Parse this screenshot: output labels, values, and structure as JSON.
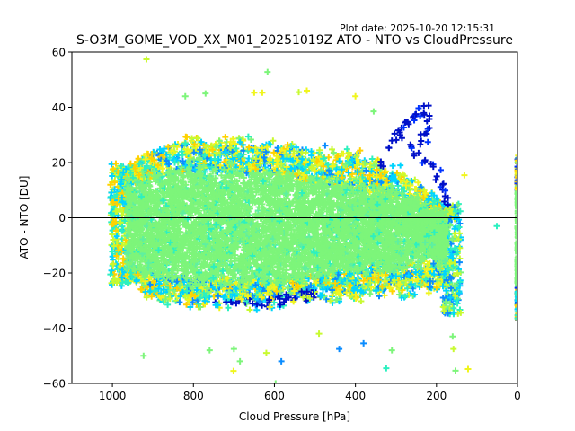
{
  "chart_data": {
    "type": "scatter",
    "title": "S-O3M_GOME_VOD_XX_M01_20251019Z ATO - NTO vs CloudPressure",
    "plot_date": "Plot date: 2025-10-20 12:15:31",
    "xlabel": "Cloud Pressure [hPa]",
    "ylabel": "ATO - NTO [DU]",
    "xlim": [
      1100,
      0
    ],
    "ylim": [
      -60,
      60
    ],
    "x_inverted": true,
    "grid": false,
    "legend": "none",
    "marker": "+",
    "x_ticks": [
      1000,
      800,
      600,
      400,
      200,
      0
    ],
    "x_tick_labels": [
      "1000",
      "800",
      "600",
      "400",
      "200",
      "0"
    ],
    "y_ticks": [
      60,
      40,
      20,
      0,
      -20,
      -40,
      -60
    ],
    "y_tick_labels": [
      "60",
      "40",
      "20",
      "0",
      "−20",
      "−40",
      "−60"
    ],
    "reference_line": {
      "y": 0,
      "color": "#000000"
    },
    "color_palette": {
      "core": "#7df57a",
      "teal": "#2cf0c0",
      "cyan": "#00d4ff",
      "azure": "#0a8cff",
      "blue": "#0033ff",
      "navy": "#0010c8",
      "yellow": "#f0f51e",
      "lime": "#c8fa30",
      "gold": "#ffd200"
    },
    "main_cloud": {
      "pressure_range": [
        980,
        160
      ],
      "upper_envelope": [
        [
          980,
          18
        ],
        [
          900,
          25
        ],
        [
          800,
          30
        ],
        [
          700,
          30
        ],
        [
          600,
          27
        ],
        [
          500,
          26
        ],
        [
          400,
          24
        ],
        [
          300,
          20
        ],
        [
          250,
          15
        ],
        [
          200,
          8
        ],
        [
          170,
          2
        ]
      ],
      "lower_envelope": [
        [
          980,
          -22
        ],
        [
          900,
          -30
        ],
        [
          800,
          -32
        ],
        [
          700,
          -33
        ],
        [
          600,
          -32
        ],
        [
          500,
          -30
        ],
        [
          400,
          -30
        ],
        [
          300,
          -29
        ],
        [
          200,
          -28
        ],
        [
          160,
          -25
        ]
      ],
      "dense_core_upper": [
        [
          960,
          12
        ],
        [
          800,
          17
        ],
        [
          600,
          15
        ],
        [
          400,
          10
        ],
        [
          250,
          5
        ],
        [
          180,
          0
        ]
      ],
      "dense_core_lower": [
        [
          960,
          -18
        ],
        [
          800,
          -22
        ],
        [
          600,
          -22
        ],
        [
          400,
          -18
        ],
        [
          250,
          -16
        ],
        [
          180,
          -14
        ]
      ]
    },
    "zero_pressure_strip": {
      "pressure": 0,
      "v_range": [
        -37,
        23
      ]
    },
    "high_ozone_branch": {
      "points": [
        [
          330,
          20
        ],
        [
          310,
          25
        ],
        [
          300,
          28
        ],
        [
          290,
          30
        ],
        [
          280,
          33
        ],
        [
          270,
          35
        ],
        [
          260,
          36
        ],
        [
          250,
          37
        ],
        [
          240,
          38
        ],
        [
          230,
          39
        ],
        [
          220,
          36
        ],
        [
          215,
          32
        ],
        [
          225,
          30
        ],
        [
          240,
          28
        ],
        [
          260,
          26
        ],
        [
          250,
          22
        ],
        [
          230,
          21
        ],
        [
          210,
          18
        ],
        [
          200,
          15
        ],
        [
          190,
          12
        ],
        [
          180,
          9
        ],
        [
          175,
          6
        ]
      ]
    },
    "outliers": [
      {
        "x": 916,
        "y": 57.4,
        "c": "lime"
      },
      {
        "x": 617,
        "y": 52.8,
        "c": "core"
      },
      {
        "x": 520,
        "y": 46,
        "c": "yellow"
      },
      {
        "x": 540,
        "y": 45.5,
        "c": "lime"
      },
      {
        "x": 650,
        "y": 45.3,
        "c": "yellow"
      },
      {
        "x": 630,
        "y": 45.3,
        "c": "yellow"
      },
      {
        "x": 400,
        "y": 44,
        "c": "yellow"
      },
      {
        "x": 770,
        "y": 45,
        "c": "core"
      },
      {
        "x": 820,
        "y": 44,
        "c": "core"
      },
      {
        "x": 355,
        "y": 38.5,
        "c": "core"
      },
      {
        "x": 131,
        "y": 15.4,
        "c": "yellow"
      },
      {
        "x": 51,
        "y": -3,
        "c": "teal"
      },
      {
        "x": 923,
        "y": -50,
        "c": "core"
      },
      {
        "x": 701,
        "y": -55.5,
        "c": "yellow"
      },
      {
        "x": 597,
        "y": -60,
        "c": "core"
      },
      {
        "x": 122,
        "y": -54.8,
        "c": "yellow"
      },
      {
        "x": 153,
        "y": -55.4,
        "c": "core"
      },
      {
        "x": 324,
        "y": -54.5,
        "c": "teal"
      },
      {
        "x": 440,
        "y": -47.5,
        "c": "azure"
      },
      {
        "x": 380,
        "y": -45.5,
        "c": "azure"
      },
      {
        "x": 158,
        "y": -47.5,
        "c": "lime"
      },
      {
        "x": 160,
        "y": -43,
        "c": "core"
      },
      {
        "x": 700,
        "y": -47.5,
        "c": "core"
      },
      {
        "x": 760,
        "y": -48,
        "c": "core"
      },
      {
        "x": 685,
        "y": -52,
        "c": "core"
      },
      {
        "x": 583,
        "y": -52,
        "c": "azure"
      },
      {
        "x": 620,
        "y": -49,
        "c": "lime"
      },
      {
        "x": 490,
        "y": -42,
        "c": "lime"
      },
      {
        "x": 310,
        "y": -48,
        "c": "core"
      }
    ]
  }
}
